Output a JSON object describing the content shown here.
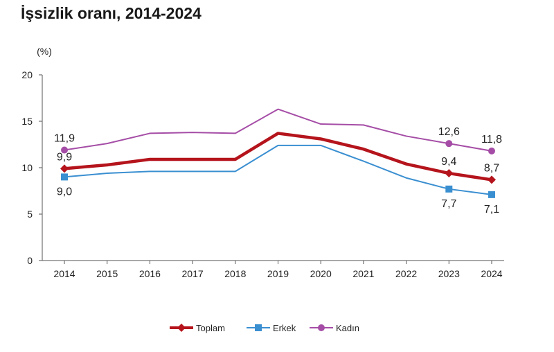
{
  "title": "İşsizlik oranı, 2014-2024",
  "chart_data": {
    "type": "line",
    "title": "İşsizlik oranı, 2014-2024",
    "unit_label": "(%)",
    "x": [
      "2014",
      "2015",
      "2016",
      "2017",
      "2018",
      "2019",
      "2020",
      "2021",
      "2022",
      "2023",
      "2024"
    ],
    "ylim": [
      0,
      20
    ],
    "yticks": [
      0,
      5,
      10,
      15,
      20
    ],
    "grid": false,
    "legend_position": "bottom",
    "series": [
      {
        "name": "Toplam",
        "color": "#b5141c",
        "marker": "diamond",
        "values": [
          9.9,
          10.3,
          10.9,
          10.9,
          10.9,
          13.7,
          13.1,
          12.0,
          10.4,
          9.4,
          8.7
        ],
        "labels": [
          {
            "index": 0,
            "text": "9,9",
            "pos": "above"
          },
          {
            "index": 9,
            "text": "9,4",
            "pos": "above"
          },
          {
            "index": 10,
            "text": "8,7",
            "pos": "above"
          }
        ]
      },
      {
        "name": "Erkek",
        "color": "#3a8fd1",
        "marker": "square",
        "values": [
          9.0,
          9.4,
          9.6,
          9.6,
          9.6,
          12.4,
          12.4,
          10.7,
          8.9,
          7.7,
          7.1
        ],
        "labels": [
          {
            "index": 0,
            "text": "9,0",
            "pos": "below"
          },
          {
            "index": 9,
            "text": "7,7",
            "pos": "below"
          },
          {
            "index": 10,
            "text": "7,1",
            "pos": "below"
          }
        ]
      },
      {
        "name": "Kadın",
        "color": "#a54da6",
        "marker": "circle",
        "values": [
          11.9,
          12.6,
          13.7,
          13.8,
          13.7,
          16.3,
          14.7,
          14.6,
          13.4,
          12.6,
          11.8
        ],
        "labels": [
          {
            "index": 0,
            "text": "11,9",
            "pos": "above"
          },
          {
            "index": 9,
            "text": "12,6",
            "pos": "above"
          },
          {
            "index": 10,
            "text": "11,8",
            "pos": "above"
          }
        ]
      }
    ]
  }
}
